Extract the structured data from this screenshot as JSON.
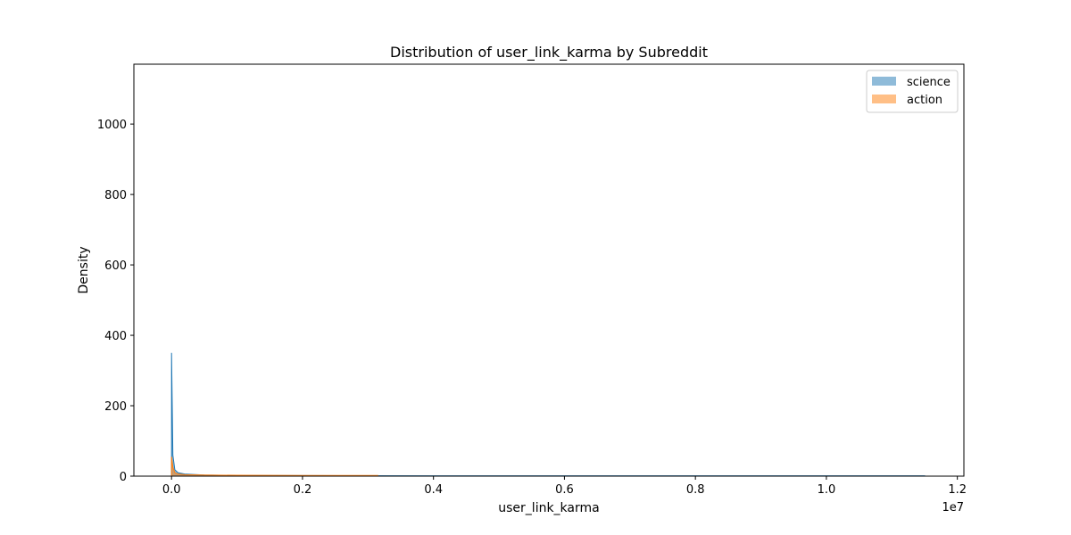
{
  "chart_data": {
    "type": "area",
    "title": "Distribution of user_link_karma by Subreddit",
    "xlabel": "user_link_karma",
    "ylabel": "Density",
    "x_offset_text": "1e7",
    "xlim": [
      -0.0575,
      1.21
    ],
    "ylim": [
      0,
      1170
    ],
    "x_ticks": [
      0.0,
      0.2,
      0.4,
      0.6,
      0.8,
      1.0,
      1.2
    ],
    "x_tick_labels": [
      "0.0",
      "0.2",
      "0.4",
      "0.6",
      "0.8",
      "1.0",
      "1.2"
    ],
    "y_ticks": [
      0,
      200,
      400,
      600,
      800,
      1000
    ],
    "y_tick_labels": [
      "0",
      "200",
      "400",
      "600",
      "800",
      "1000"
    ],
    "grid": false,
    "legend_position": "top-right",
    "series": [
      {
        "name": "science",
        "color": "#1f77b4",
        "x": [
          0.0,
          0.002,
          0.005,
          0.01,
          0.02,
          0.05,
          0.1,
          0.2,
          0.4,
          0.6,
          0.8,
          1.0,
          1.15
        ],
        "y": [
          350,
          60,
          18,
          10,
          6,
          3,
          2,
          1.5,
          1,
          1,
          1,
          1,
          1
        ]
      },
      {
        "name": "action",
        "color": "#ff7f0e",
        "x": [
          0.0,
          0.002,
          0.005,
          0.01,
          0.02,
          0.05,
          0.1,
          0.2,
          0.315
        ],
        "y": [
          55,
          25,
          10,
          6,
          4,
          3,
          2.5,
          2,
          2
        ]
      }
    ]
  }
}
